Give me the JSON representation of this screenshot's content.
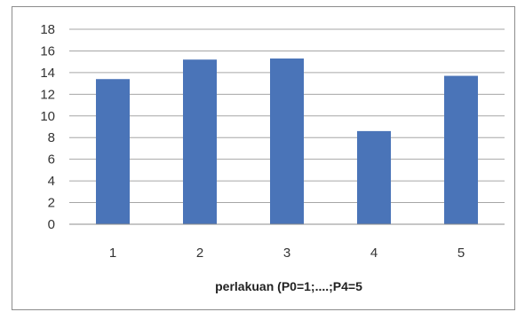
{
  "chart_data": {
    "type": "bar",
    "categories": [
      "1",
      "2",
      "3",
      "4",
      "5"
    ],
    "values": [
      13.4,
      15.2,
      15.3,
      8.6,
      13.7
    ],
    "title": "",
    "xlabel": "perlakuan (P0=1;....;P4=5",
    "ylabel": "",
    "ylim": [
      0,
      18
    ],
    "yticks": [
      "0",
      "2",
      "4",
      "6",
      "8",
      "10",
      "12",
      "14",
      "16",
      "18"
    ],
    "grid": true,
    "legend": "none",
    "bar_color": "#4a74b8",
    "grid_color": "#a6a6a6"
  }
}
